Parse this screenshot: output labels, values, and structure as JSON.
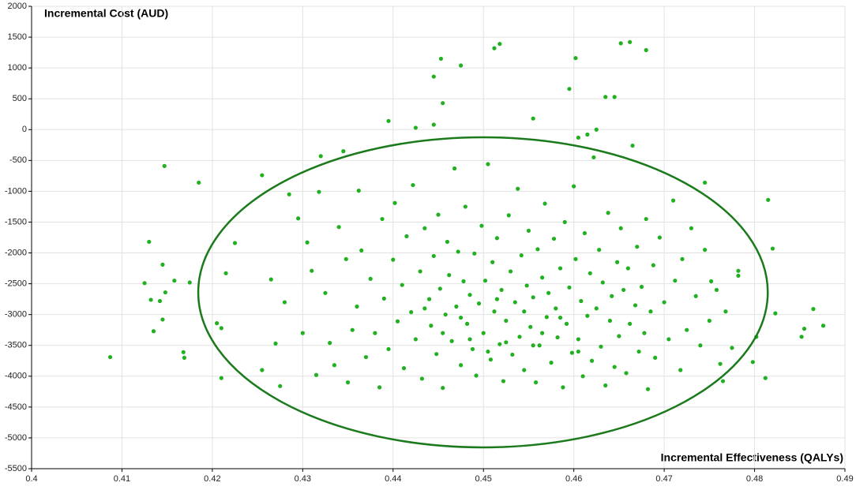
{
  "chart_data": {
    "type": "scatter",
    "y_label": "Incremental Cost (AUD)",
    "x_label": "Incremental Effectiveness (QALYs)",
    "color": "#20b020",
    "ellipse": {
      "cx": 0.44995,
      "cy": -2639,
      "rx": 0.03151,
      "ry": 2515,
      "color": "#1b7a1b"
    },
    "xlim": [
      0.4,
      0.49
    ],
    "xticks": [
      0.4,
      0.41,
      0.42,
      0.43,
      0.44,
      0.45,
      0.46,
      0.47,
      0.48,
      0.49
    ],
    "ylim": [
      -5500,
      2000
    ],
    "yticks": [
      2000,
      1500,
      1000,
      500,
      0,
      -500,
      -1000,
      -1500,
      -2000,
      -2500,
      -3000,
      -3500,
      -4000,
      -4500,
      -5000,
      -5500
    ],
    "grid": true,
    "x": [
      0.4255,
      0.4265,
      0.427,
      0.4275,
      0.428,
      0.4285,
      0.4295,
      0.43,
      0.4305,
      0.431,
      0.4315,
      0.4318,
      0.432,
      0.4325,
      0.433,
      0.4335,
      0.434,
      0.4345,
      0.4348,
      0.435,
      0.4355,
      0.436,
      0.4362,
      0.4365,
      0.437,
      0.4375,
      0.438,
      0.4385,
      0.4388,
      0.439,
      0.4395,
      0.44,
      0.4402,
      0.4405,
      0.441,
      0.4412,
      0.4415,
      0.442,
      0.4422,
      0.4425,
      0.443,
      0.4432,
      0.4435,
      0.444,
      0.4442,
      0.4445,
      0.4448,
      0.445,
      0.4452,
      0.4455,
      0.4458,
      0.446,
      0.4462,
      0.4465,
      0.4468,
      0.447,
      0.4472,
      0.4475,
      0.4478,
      0.448,
      0.4482,
      0.4485,
      0.4488,
      0.449,
      0.4492,
      0.4495,
      0.4498,
      0.45,
      0.4502,
      0.4505,
      0.4508,
      0.451,
      0.4512,
      0.4515,
      0.4518,
      0.452,
      0.4522,
      0.4525,
      0.4528,
      0.453,
      0.4532,
      0.4535,
      0.4538,
      0.454,
      0.4542,
      0.4545,
      0.4548,
      0.455,
      0.4552,
      0.4555,
      0.4558,
      0.456,
      0.4562,
      0.4565,
      0.4568,
      0.457,
      0.4572,
      0.4575,
      0.4578,
      0.458,
      0.4582,
      0.4585,
      0.4588,
      0.459,
      0.4592,
      0.4595,
      0.4598,
      0.46,
      0.4602,
      0.4605,
      0.4608,
      0.461,
      0.4612,
      0.4615,
      0.4618,
      0.462,
      0.4622,
      0.4625,
      0.4628,
      0.463,
      0.4632,
      0.4635,
      0.4638,
      0.464,
      0.4642,
      0.4645,
      0.4648,
      0.465,
      0.4652,
      0.4655,
      0.4658,
      0.466,
      0.4662,
      0.4665,
      0.4668,
      0.467,
      0.4672,
      0.4675,
      0.4678,
      0.468,
      0.4682,
      0.4685,
      0.4688,
      0.469,
      0.4695,
      0.47,
      0.4705,
      0.471,
      0.4712,
      0.4718,
      0.472,
      0.4725,
      0.473,
      0.4735,
      0.474,
      0.4745,
      0.475,
      0.4758,
      0.4762,
      0.4768,
      0.4435,
      0.4455,
      0.4475,
      0.4505,
      0.4525,
      0.4545,
      0.4565,
      0.4585,
      0.4605,
      0.4485,
      0.4515,
      0.4555,
      0.4087,
      0.4125,
      0.413,
      0.4132,
      0.4135,
      0.4142,
      0.4145,
      0.4145,
      0.4147,
      0.4148,
      0.4158,
      0.4168,
      0.4169,
      0.4175,
      0.4185,
      0.4205,
      0.421,
      0.421,
      0.4215,
      0.4225,
      0.4255,
      0.4453,
      0.4475,
      0.4512,
      0.4518,
      0.4652,
      0.4662,
      0.468,
      0.4602,
      0.4595,
      0.4445,
      0.4455,
      0.4395,
      0.4425,
      0.4445,
      0.4605,
      0.4615,
      0.4625,
      0.4635,
      0.4645,
      0.4555,
      0.4865,
      0.4855,
      0.4852,
      0.4876,
      0.4815,
      0.482,
      0.4823,
      0.4802,
      0.4812,
      0.4798,
      0.4782,
      0.4782,
      0.4745,
      0.4752,
      0.4765,
      0.4775
    ],
    "values": [
      -3900,
      -2430,
      -3470,
      -4160,
      -2800,
      -1050,
      -1440,
      -3300,
      -1830,
      -2290,
      -3980,
      -1010,
      -430,
      -2650,
      -3460,
      -3820,
      -1580,
      -350,
      -2100,
      -4100,
      -3250,
      -2870,
      -990,
      -1960,
      -3690,
      -2420,
      -3300,
      -4180,
      -1450,
      -2740,
      -3560,
      -2110,
      -1190,
      -3110,
      -2520,
      -3870,
      -1730,
      -2960,
      -900,
      -3400,
      -2300,
      -4040,
      -1600,
      -2750,
      -3180,
      -2050,
      -3640,
      -1380,
      -2580,
      -4190,
      -3000,
      -1820,
      -2360,
      -3430,
      -630,
      -2870,
      -1980,
      -3820,
      -2460,
      -1250,
      -3150,
      -2680,
      -3560,
      -2010,
      -3990,
      -2820,
      -1560,
      -3300,
      -2450,
      -560,
      -3730,
      -2150,
      -2950,
      -1760,
      -3480,
      -2600,
      -4080,
      -3100,
      -1390,
      -2300,
      -3650,
      -2800,
      -960,
      -3360,
      -2040,
      -3900,
      -2530,
      -1640,
      -3200,
      -2720,
      -4100,
      -1940,
      -3500,
      -2400,
      -1200,
      -3040,
      -2650,
      -3780,
      -1770,
      -2900,
      -3370,
      -2250,
      -4180,
      -1500,
      -3150,
      -2560,
      -3620,
      -920,
      -2100,
      -3400,
      -2780,
      -4000,
      -1680,
      -3020,
      -2330,
      -3750,
      -450,
      -2900,
      -1950,
      -3520,
      -2480,
      -4150,
      -1350,
      -3100,
      -2700,
      -3850,
      -2150,
      -3350,
      -1600,
      -2600,
      -3950,
      -2250,
      -3150,
      -260,
      -2850,
      -1900,
      -3600,
      -2550,
      -3300,
      -1450,
      -4210,
      -2950,
      -2200,
      -3700,
      -1750,
      -2800,
      -3400,
      -1150,
      -2450,
      -3900,
      -2100,
      -3250,
      -1600,
      -2700,
      -3500,
      -1950,
      -3100,
      -2600,
      -3800,
      -2950,
      -2900,
      -3300,
      -3050,
      -3600,
      -3450,
      -2950,
      -3300,
      -3050,
      -3600,
      -3400,
      -2750,
      -3500,
      -3690,
      -2490,
      -1820,
      -2760,
      -3270,
      -2780,
      -2190,
      -3080,
      -590,
      -2640,
      -2450,
      -3610,
      -3700,
      -2480,
      -860,
      -3140,
      -3220,
      -4030,
      -2330,
      -1840,
      -740,
      1150,
      1040,
      1320,
      1390,
      1400,
      1420,
      1290,
      1160,
      660,
      860,
      430,
      140,
      30,
      80,
      -130,
      -80,
      0,
      530,
      530,
      180,
      -2910,
      -3230,
      -3360,
      -3180,
      -1140,
      -1930,
      -2980,
      -3360,
      -4030,
      -3770,
      -2290,
      -2370,
      -860,
      -2460,
      -4080,
      -3540
    ]
  }
}
